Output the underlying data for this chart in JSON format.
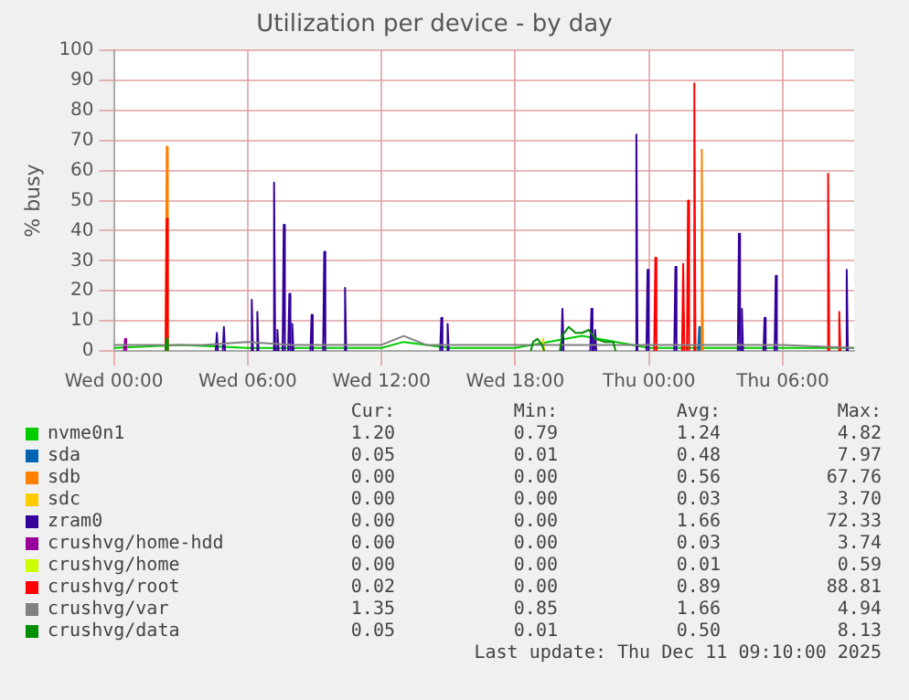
{
  "chart_data": {
    "type": "line",
    "title": "Utilization per device - by day",
    "ylabel": "% busy",
    "xlim": [
      "2025-12-10T00:00",
      "2025-12-11T09:12"
    ],
    "xticks": [
      {
        "value": "2025-12-10T00:00",
        "label": "Wed 00:00"
      },
      {
        "value": "2025-12-10T06:00",
        "label": "Wed 06:00"
      },
      {
        "value": "2025-12-10T12:00",
        "label": "Wed 12:00"
      },
      {
        "value": "2025-12-10T18:00",
        "label": "Wed 18:00"
      },
      {
        "value": "2025-12-11T00:00",
        "label": "Thu 00:00"
      },
      {
        "value": "2025-12-11T06:00",
        "label": "Thu 06:00"
      }
    ],
    "ylim": [
      0,
      100
    ],
    "yticks": [
      0,
      10,
      20,
      30,
      40,
      50,
      60,
      70,
      80,
      90,
      100
    ],
    "grid": true,
    "legend": "bottom",
    "marker": "none",
    "line_style": "solid",
    "series": [
      {
        "name": "nvme0n1",
        "color": "#00cc00",
        "x": [
          "2025-12-10T00:00",
          "2025-12-10T03:00",
          "2025-12-10T06:00",
          "2025-12-10T09:00",
          "2025-12-10T12:00",
          "2025-12-10T13:00",
          "2025-12-10T15:00",
          "2025-12-10T18:00",
          "2025-12-10T21:00",
          "2025-12-11T00:00",
          "2025-12-11T03:00",
          "2025-12-11T06:00",
          "2025-12-11T09:12"
        ],
        "values": [
          1,
          2,
          1,
          1,
          1,
          3,
          1,
          1,
          5,
          1,
          1,
          1,
          1
        ]
      },
      {
        "name": "sda",
        "color": "#0066b3",
        "x": [
          "2025-12-11T02:12",
          "2025-12-11T02:15",
          "2025-12-11T02:18"
        ],
        "values": [
          0,
          8,
          0
        ]
      },
      {
        "name": "sdb",
        "color": "#ff8000",
        "x": [
          "2025-12-10T02:19",
          "2025-12-10T02:22",
          "2025-12-10T02:25",
          "2025-12-11T02:19",
          "2025-12-11T02:22",
          "2025-12-11T02:25"
        ],
        "values": [
          0,
          68,
          0,
          0,
          67,
          0
        ]
      },
      {
        "name": "sdc",
        "color": "#ffcc00",
        "x": [
          "2025-12-10T19:12",
          "2025-12-10T19:15",
          "2025-12-10T19:18"
        ],
        "values": [
          0,
          4,
          0
        ]
      },
      {
        "name": "zram0",
        "color": "#330099",
        "x": [
          "2025-12-10T04:34",
          "2025-12-10T04:37",
          "2025-12-10T04:40",
          "2025-12-10T04:53",
          "2025-12-10T04:56",
          "2025-12-10T04:59",
          "2025-12-10T06:08",
          "2025-12-10T06:11",
          "2025-12-10T06:14",
          "2025-12-10T06:23",
          "2025-12-10T06:26",
          "2025-12-10T06:29",
          "2025-12-10T07:08",
          "2025-12-10T07:11",
          "2025-12-10T07:14",
          "2025-12-10T07:17",
          "2025-12-10T07:20",
          "2025-12-10T07:23",
          "2025-12-10T07:34",
          "2025-12-10T07:37",
          "2025-12-10T07:40",
          "2025-12-10T07:49",
          "2025-12-10T07:52",
          "2025-12-10T07:55",
          "2025-12-10T07:57",
          "2025-12-10T08:00",
          "2025-12-10T08:03",
          "2025-12-10T08:49",
          "2025-12-10T08:52",
          "2025-12-10T08:55",
          "2025-12-10T09:23",
          "2025-12-10T09:26",
          "2025-12-10T09:29",
          "2025-12-10T10:19",
          "2025-12-10T10:22",
          "2025-12-10T10:25",
          "2025-12-10T14:38",
          "2025-12-10T14:41",
          "2025-12-10T14:44",
          "2025-12-10T14:55",
          "2025-12-10T14:58",
          "2025-12-10T15:01",
          "2025-12-10T20:04",
          "2025-12-10T20:07",
          "2025-12-10T20:10",
          "2025-12-10T21:22",
          "2025-12-10T21:25",
          "2025-12-10T21:28",
          "2025-12-10T21:32",
          "2025-12-10T21:35",
          "2025-12-10T21:38",
          "2025-12-10T23:23",
          "2025-12-10T23:26",
          "2025-12-10T23:29",
          "2025-12-10T23:53",
          "2025-12-10T23:56",
          "2025-12-10T23:59",
          "2025-12-11T01:08",
          "2025-12-11T01:11",
          "2025-12-11T01:14",
          "2025-12-11T03:59",
          "2025-12-11T04:02",
          "2025-12-11T04:05",
          "2025-12-11T04:07",
          "2025-12-11T04:10",
          "2025-12-11T04:13",
          "2025-12-11T05:08",
          "2025-12-11T05:11",
          "2025-12-11T05:14",
          "2025-12-11T05:38",
          "2025-12-11T05:41",
          "2025-12-11T05:44",
          "2025-12-11T08:49",
          "2025-12-11T08:52",
          "2025-12-11T08:55"
        ],
        "values": [
          0,
          6,
          0,
          0,
          8,
          0,
          0,
          17,
          0,
          0,
          13,
          0,
          0,
          56,
          0,
          0,
          7,
          0,
          0,
          42,
          0,
          0,
          19,
          0,
          0,
          9,
          0,
          0,
          12,
          0,
          0,
          33,
          0,
          0,
          21,
          0,
          0,
          11,
          0,
          0,
          9,
          0,
          0,
          14,
          0,
          0,
          14,
          0,
          0,
          7,
          0,
          0,
          72,
          0,
          0,
          27,
          0,
          0,
          28,
          0,
          0,
          39,
          0,
          0,
          14,
          0,
          0,
          11,
          0,
          0,
          25,
          0,
          0,
          27,
          0
        ]
      },
      {
        "name": "crushvg/home-hdd",
        "color": "#990099",
        "x": [
          "2025-12-10T00:27",
          "2025-12-10T00:30",
          "2025-12-10T00:33"
        ],
        "values": [
          0,
          4,
          0
        ]
      },
      {
        "name": "crushvg/home",
        "color": "#ccff00"
      },
      {
        "name": "crushvg/root",
        "color": "#ff0000",
        "x": [
          "2025-12-10T02:19",
          "2025-12-10T02:22",
          "2025-12-10T02:25",
          "2025-12-11T00:14",
          "2025-12-11T00:17",
          "2025-12-11T00:20",
          "2025-12-11T01:29",
          "2025-12-11T01:32",
          "2025-12-11T01:35",
          "2025-12-11T01:42",
          "2025-12-11T01:45",
          "2025-12-11T01:48",
          "2025-12-11T01:59",
          "2025-12-11T02:02",
          "2025-12-11T02:05",
          "2025-12-11T07:59",
          "2025-12-11T08:02",
          "2025-12-11T08:05",
          "2025-12-11T08:29",
          "2025-12-11T08:32",
          "2025-12-11T08:35"
        ],
        "values": [
          0,
          44,
          0,
          0,
          31,
          0,
          0,
          29,
          0,
          0,
          50,
          0,
          0,
          89,
          0,
          0,
          59,
          0,
          0,
          13,
          0
        ]
      },
      {
        "name": "crushvg/var",
        "color": "#808080",
        "x": [
          "2025-12-10T00:00",
          "2025-12-10T02:00",
          "2025-12-10T04:00",
          "2025-12-10T06:00",
          "2025-12-10T08:00",
          "2025-12-10T10:00",
          "2025-12-10T12:00",
          "2025-12-10T13:00",
          "2025-12-10T14:00",
          "2025-12-10T16:00",
          "2025-12-10T18:00",
          "2025-12-10T20:00",
          "2025-12-10T22:00",
          "2025-12-11T00:00",
          "2025-12-11T02:00",
          "2025-12-11T04:00",
          "2025-12-11T06:00",
          "2025-12-11T09:12"
        ],
        "values": [
          2,
          2,
          2,
          3,
          2,
          2,
          2,
          5,
          2,
          2,
          2,
          2,
          2,
          2,
          2,
          2,
          2,
          1
        ]
      },
      {
        "name": "crushvg/data",
        "color": "#008f00",
        "x": [
          "2025-12-10T02:19",
          "2025-12-10T02:22",
          "2025-12-10T02:25",
          "2025-12-10T18:42",
          "2025-12-10T18:48",
          "2025-12-10T19:00",
          "2025-12-10T19:12",
          "2025-12-10T19:18",
          "2025-12-10T20:00",
          "2025-12-10T20:06",
          "2025-12-10T20:24",
          "2025-12-10T20:42",
          "2025-12-10T21:00",
          "2025-12-10T21:18",
          "2025-12-10T21:36",
          "2025-12-10T22:00",
          "2025-12-10T22:24",
          "2025-12-10T22:30"
        ],
        "values": [
          0,
          4,
          0,
          0,
          3,
          4,
          2,
          0,
          0,
          5,
          8,
          6,
          6,
          7,
          4,
          3,
          3,
          0
        ]
      }
    ],
    "annotations": [
      "Cur:",
      "Min:",
      "Avg:",
      "Max:",
      "1.20",
      "0.79",
      "1.24",
      "4.82",
      "0.05",
      "0.01",
      "0.48",
      "7.97",
      "0.00",
      "0.00",
      "0.56",
      "67.76",
      "0.00",
      "0.00",
      "0.03",
      "3.70",
      "0.00",
      "0.00",
      "1.66",
      "72.33",
      "0.00",
      "0.00",
      "0.03",
      "3.74",
      "0.00",
      "0.00",
      "0.01",
      "0.59",
      "0.02",
      "0.00",
      "0.89",
      "88.81",
      "1.35",
      "0.85",
      "1.66",
      "4.94",
      "0.05",
      "0.01",
      "0.50",
      "8.13",
      "Last update: Thu Dec 11 09:10:00 2025"
    ]
  }
}
